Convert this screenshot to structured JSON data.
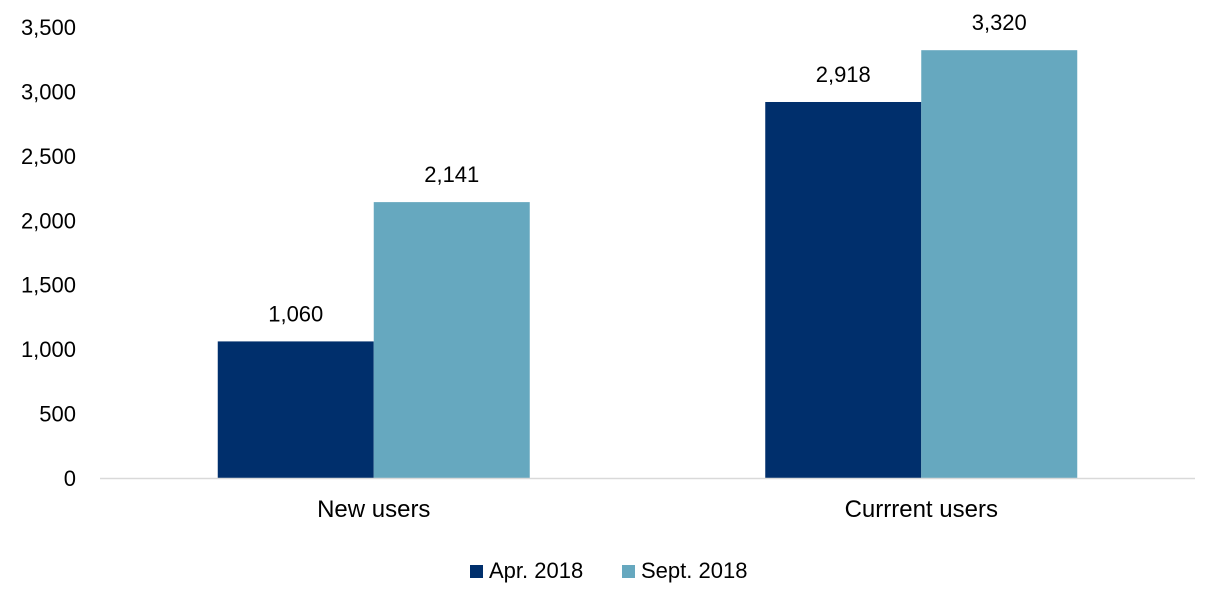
{
  "chart_data": {
    "type": "bar",
    "title": "",
    "xlabel": "",
    "ylabel": "",
    "categories": [
      "New users",
      "Currrent users"
    ],
    "series": [
      {
        "name": "Apr. 2018",
        "color": "#002f6c",
        "values": [
          1060,
          2918
        ],
        "labels": [
          "1,060",
          "2,918"
        ]
      },
      {
        "name": "Sept. 2018",
        "color": "#66a8bf",
        "values": [
          2141,
          3320
        ],
        "labels": [
          "2,141",
          "3,320"
        ]
      }
    ],
    "ylim": [
      0,
      3500
    ],
    "yticks": [
      0,
      500,
      1000,
      1500,
      2000,
      2500,
      3000,
      3500
    ],
    "ytick_labels": [
      "0",
      "500",
      "1,000",
      "1,500",
      "2,000",
      "2,500",
      "3,000",
      "3,500"
    ],
    "grid": false,
    "legend_position": "bottom-center",
    "axis_color": "#d9d9d9"
  }
}
